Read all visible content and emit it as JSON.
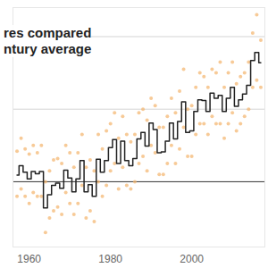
{
  "chart_data": {
    "type": "line",
    "title": [
      "res compared",
      "ntury average"
    ],
    "x": [
      1957,
      1958,
      1959,
      1960,
      1961,
      1962,
      1963,
      1964,
      1965,
      1966,
      1967,
      1968,
      1969,
      1970,
      1971,
      1972,
      1973,
      1974,
      1975,
      1976,
      1977,
      1978,
      1979,
      1980,
      1981,
      1982,
      1983,
      1984,
      1985,
      1986,
      1987,
      1988,
      1989,
      1990,
      1991,
      1992,
      1993,
      1994,
      1995,
      1996,
      1997,
      1998,
      1999,
      2000,
      2001,
      2002,
      2003,
      2004,
      2005,
      2006,
      2007,
      2008,
      2009,
      2010,
      2011,
      2012,
      2013,
      2014,
      2015,
      2016,
      2017
    ],
    "series": [
      {
        "type": "line",
        "line_style": "step",
        "color": "#222222",
        "values": [
          0.09,
          0.22,
          0.13,
          0.04,
          0.14,
          0.11,
          0.14,
          -0.36,
          -0.18,
          -0.05,
          -0.02,
          -0.09,
          0.16,
          0.05,
          -0.14,
          0.04,
          0.29,
          -0.14,
          -0.04,
          -0.2,
          0.31,
          0.13,
          0.29,
          0.47,
          0.58,
          0.25,
          0.56,
          0.29,
          0.22,
          0.32,
          0.59,
          0.68,
          0.49,
          0.81,
          0.72,
          0.4,
          0.41,
          0.56,
          0.81,
          0.59,
          0.83,
          1.1,
          0.68,
          0.7,
          0.97,
          1.13,
          1.12,
          0.97,
          1.22,
          1.15,
          1.19,
          0.97,
          1.15,
          1.3,
          1.04,
          1.13,
          1.21,
          1.33,
          1.67,
          1.78,
          1.64
        ]
      },
      {
        "type": "scatter",
        "marker": "circle",
        "color": "#f3b36b",
        "x": [
          1957,
          1957,
          1958,
          1958,
          1959,
          1959,
          1960,
          1960,
          1961,
          1961,
          1962,
          1962,
          1963,
          1963,
          1964,
          1964,
          1965,
          1965,
          1966,
          1966,
          1967,
          1967,
          1968,
          1968,
          1969,
          1969,
          1970,
          1970,
          1971,
          1971,
          1972,
          1972,
          1973,
          1973,
          1974,
          1974,
          1975,
          1975,
          1976,
          1976,
          1977,
          1977,
          1978,
          1978,
          1979,
          1979,
          1980,
          1980,
          1981,
          1981,
          1982,
          1982,
          1983,
          1983,
          1984,
          1984,
          1985,
          1985,
          1986,
          1986,
          1987,
          1987,
          1988,
          1988,
          1989,
          1989,
          1990,
          1990,
          1991,
          1991,
          1992,
          1992,
          1993,
          1993,
          1994,
          1994,
          1995,
          1995,
          1996,
          1996,
          1997,
          1997,
          1998,
          1998,
          1999,
          1999,
          2000,
          2000,
          2001,
          2001,
          2002,
          2002,
          2003,
          2003,
          2004,
          2004,
          2005,
          2005,
          2006,
          2006,
          2007,
          2007,
          2008,
          2008,
          2009,
          2009,
          2010,
          2010,
          2011,
          2011,
          2012,
          2012,
          2013,
          2013,
          2014,
          2014,
          2015,
          2015,
          2016,
          2016,
          2017,
          2017
        ],
        "values": [
          0.42,
          -0.2,
          0.6,
          -0.1,
          0.45,
          -0.2,
          0.38,
          -0.3,
          0.5,
          -0.15,
          0.4,
          -0.2,
          0.5,
          -0.2,
          0.0,
          -0.7,
          0.15,
          -0.5,
          0.3,
          -0.4,
          0.32,
          -0.35,
          0.25,
          -0.45,
          0.5,
          -0.15,
          0.4,
          -0.3,
          0.2,
          -0.45,
          0.4,
          -0.3,
          0.65,
          -0.05,
          0.2,
          -0.5,
          0.3,
          -0.4,
          0.15,
          -0.55,
          0.65,
          0.0,
          0.45,
          -0.2,
          0.7,
          -0.05,
          0.8,
          0.15,
          0.95,
          0.25,
          0.6,
          -0.1,
          0.9,
          0.2,
          0.65,
          -0.05,
          0.55,
          -0.1,
          0.65,
          0.0,
          0.95,
          0.25,
          1.0,
          0.35,
          0.85,
          0.15,
          1.15,
          0.5,
          1.05,
          0.4,
          0.75,
          0.1,
          0.75,
          0.1,
          0.9,
          0.25,
          1.15,
          0.5,
          0.95,
          0.25,
          1.25,
          0.45,
          1.55,
          0.75,
          1.0,
          0.35,
          1.05,
          0.35,
          1.3,
          0.65,
          1.5,
          0.8,
          1.45,
          0.8,
          1.3,
          0.65,
          1.55,
          0.9,
          1.5,
          0.8,
          1.65,
          0.8,
          1.3,
          0.6,
          1.5,
          0.8,
          1.65,
          0.95,
          1.35,
          0.7,
          1.45,
          0.8,
          1.5,
          0.9,
          1.65,
          1.0,
          2.05,
          1.3,
          2.3,
          1.4,
          1.95,
          1.3
        ]
      }
    ],
    "xlim": [
      1956,
      2018
    ],
    "xticks": [
      1960,
      1980,
      2000
    ],
    "ylim": [
      -0.9,
      2.4
    ],
    "yticks": [
      0,
      1,
      2
    ],
    "grid": true,
    "tick_labels": "x"
  }
}
